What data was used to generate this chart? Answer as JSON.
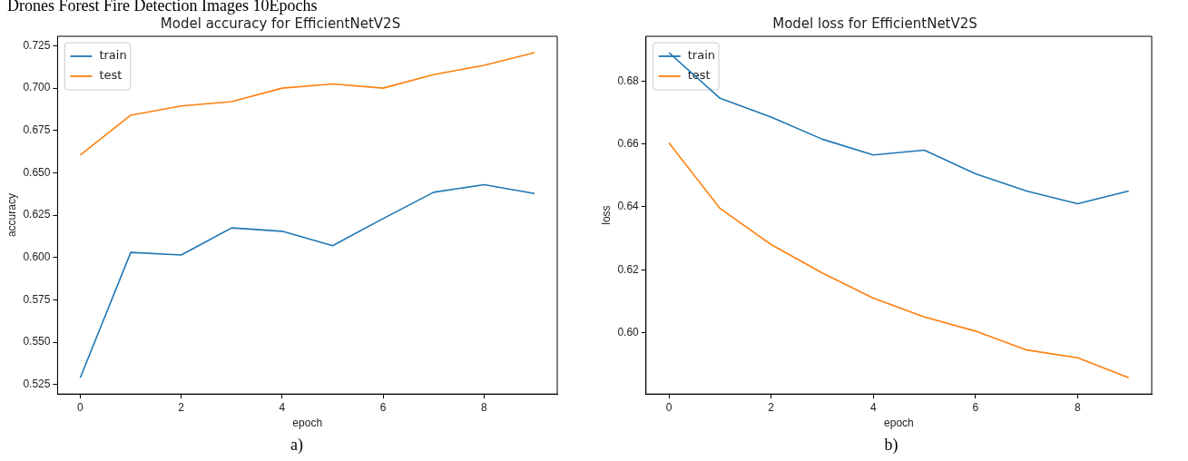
{
  "chart_data": [
    {
      "type": "line",
      "title": "Model accuracy for EfficientNetV2S",
      "xlabel": "epoch",
      "ylabel": "accuracy",
      "x": [
        0,
        1,
        2,
        3,
        4,
        5,
        6,
        7,
        8,
        9
      ],
      "series": [
        {
          "name": "train",
          "color": "#1f77b4",
          "values": [
            0.529,
            0.603,
            0.6015,
            0.6175,
            0.6155,
            0.607,
            0.623,
            0.6385,
            0.643,
            0.6378
          ]
        },
        {
          "name": "test",
          "color": "#ff7f0e",
          "values": [
            0.6605,
            0.684,
            0.6895,
            0.692,
            0.7,
            0.7025,
            0.7,
            0.708,
            0.7135,
            0.721
          ]
        }
      ],
      "xlim": [
        -0.45,
        9.45
      ],
      "xticks": [
        0,
        2,
        4,
        6,
        8
      ],
      "ylim": [
        0.5194,
        0.7306
      ],
      "yticks": [
        {
          "value": 0.525,
          "label": "0.525"
        },
        {
          "value": 0.55,
          "label": "0.550"
        },
        {
          "value": 0.575,
          "label": "0.575"
        },
        {
          "value": 0.6,
          "label": "0.600"
        },
        {
          "value": 0.625,
          "label": "0.625"
        },
        {
          "value": 0.65,
          "label": "0.650"
        },
        {
          "value": 0.675,
          "label": "0.675"
        },
        {
          "value": 0.7,
          "label": "0.700"
        },
        {
          "value": 0.725,
          "label": "0.725"
        }
      ],
      "grid": false,
      "legend": "top left",
      "marker": "none",
      "line_style": "solid",
      "annotations": [
        "Drones Forest Fire Detection Images 10Epochs",
        "a)"
      ]
    },
    {
      "type": "line",
      "title": "Model loss for EfficientNetV2S",
      "xlabel": "epoch",
      "ylabel": "loss",
      "x": [
        0,
        1,
        2,
        3,
        4,
        5,
        6,
        7,
        8,
        9
      ],
      "series": [
        {
          "name": "train",
          "color": "#1f77b4",
          "values": [
            0.689,
            0.6745,
            0.6685,
            0.6615,
            0.6565,
            0.658,
            0.6505,
            0.645,
            0.641,
            0.645
          ]
        },
        {
          "name": "test",
          "color": "#ff7f0e",
          "values": [
            0.6603,
            0.6395,
            0.628,
            0.619,
            0.611,
            0.605,
            0.6005,
            0.5945,
            0.592,
            0.5857
          ]
        }
      ],
      "xlim": [
        -0.45,
        9.45
      ],
      "xticks": [
        0,
        2,
        4,
        6,
        8
      ],
      "ylim": [
        0.5805,
        0.6942
      ],
      "yticks": [
        {
          "value": 0.6,
          "label": "0.60"
        },
        {
          "value": 0.62,
          "label": "0.62"
        },
        {
          "value": 0.64,
          "label": "0.64"
        },
        {
          "value": 0.66,
          "label": "0.66"
        },
        {
          "value": 0.68,
          "label": "0.68"
        }
      ],
      "grid": false,
      "legend": "top left",
      "marker": "none",
      "line_style": "solid",
      "annotations": [
        "b)"
      ]
    }
  ]
}
